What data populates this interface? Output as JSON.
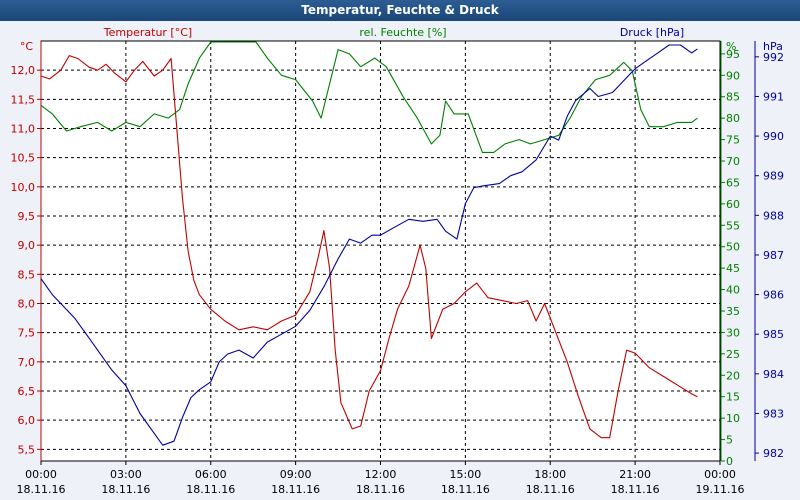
{
  "window": {
    "title": "Temperatur, Feuchte & Druck"
  },
  "colors": {
    "temperature": "#c00000",
    "humidity": "#008000",
    "pressure": "#0000a0",
    "grid": "#000000",
    "titlebar": "#1f4d82"
  },
  "chart_data": {
    "type": "line",
    "title": "Temperatur, Feuchte & Druck",
    "grid": true,
    "legend": "top",
    "x_ticks": [
      {
        "time": "00:00",
        "date": "18.11.16"
      },
      {
        "time": "03:00",
        "date": "18.11.16"
      },
      {
        "time": "06:00",
        "date": "18.11.16"
      },
      {
        "time": "09:00",
        "date": "18.11.16"
      },
      {
        "time": "12:00",
        "date": "18.11.16"
      },
      {
        "time": "15:00",
        "date": "18.11.16"
      },
      {
        "time": "18:00",
        "date": "18.11.16"
      },
      {
        "time": "21:00",
        "date": "18.11.16"
      },
      {
        "time": "00:00",
        "date": "19.11.16"
      }
    ],
    "xlim_hours": [
      0,
      24
    ],
    "axes": {
      "temperature": {
        "label": "Temperatur [°C]",
        "unit": "°C",
        "ylim": [
          5.3,
          12.5
        ],
        "ticks": [
          "5,5",
          "6,0",
          "6,5",
          "7,0",
          "7,5",
          "8,0",
          "8,5",
          "9,0",
          "9,5",
          "10,0",
          "10,5",
          "11,0",
          "11,5",
          "12,0"
        ]
      },
      "humidity": {
        "label": "rel. Feuchte [%]",
        "unit": "%",
        "ylim": [
          0,
          98
        ],
        "ticks": [
          "0",
          "5",
          "10",
          "15",
          "20",
          "25",
          "30",
          "35",
          "40",
          "45",
          "50",
          "55",
          "60",
          "65",
          "70",
          "75",
          "80",
          "85",
          "90",
          "95"
        ]
      },
      "pressure": {
        "label": "Druck [hPa]",
        "unit": "hPa",
        "ylim": [
          981.8,
          992.4
        ],
        "ticks": [
          "982",
          "983",
          "984",
          "985",
          "986",
          "987",
          "988",
          "989",
          "990",
          "991",
          "992"
        ]
      }
    },
    "series": [
      {
        "name": "Temperatur [°C]",
        "axis": "temperature",
        "color": "#c00000",
        "points": [
          [
            0,
            11.9
          ],
          [
            0.3,
            11.85
          ],
          [
            0.7,
            12.0
          ],
          [
            1.0,
            12.25
          ],
          [
            1.3,
            12.2
          ],
          [
            1.7,
            12.05
          ],
          [
            2.0,
            12.0
          ],
          [
            2.3,
            12.1
          ],
          [
            2.6,
            11.95
          ],
          [
            3.0,
            11.8
          ],
          [
            3.3,
            12.0
          ],
          [
            3.6,
            12.15
          ],
          [
            4.0,
            11.9
          ],
          [
            4.3,
            12.0
          ],
          [
            4.6,
            12.2
          ],
          [
            4.8,
            11.0
          ],
          [
            5.0,
            9.8
          ],
          [
            5.2,
            8.9
          ],
          [
            5.4,
            8.4
          ],
          [
            5.6,
            8.15
          ],
          [
            6.0,
            7.9
          ],
          [
            6.5,
            7.7
          ],
          [
            7.0,
            7.55
          ],
          [
            7.5,
            7.6
          ],
          [
            8.0,
            7.55
          ],
          [
            8.5,
            7.7
          ],
          [
            9.0,
            7.8
          ],
          [
            9.5,
            8.2
          ],
          [
            9.8,
            8.8
          ],
          [
            10.0,
            9.25
          ],
          [
            10.2,
            8.6
          ],
          [
            10.4,
            7.2
          ],
          [
            10.6,
            6.3
          ],
          [
            11.0,
            5.85
          ],
          [
            11.3,
            5.9
          ],
          [
            11.6,
            6.5
          ],
          [
            12.0,
            6.85
          ],
          [
            12.3,
            7.4
          ],
          [
            12.6,
            7.9
          ],
          [
            13.0,
            8.3
          ],
          [
            13.4,
            9.0
          ],
          [
            13.6,
            8.6
          ],
          [
            13.8,
            7.4
          ],
          [
            14.2,
            7.9
          ],
          [
            14.6,
            8.0
          ],
          [
            15.0,
            8.2
          ],
          [
            15.4,
            8.35
          ],
          [
            15.8,
            8.1
          ],
          [
            16.3,
            8.05
          ],
          [
            16.8,
            8.0
          ],
          [
            17.2,
            8.05
          ],
          [
            17.5,
            7.7
          ],
          [
            17.8,
            8.0
          ],
          [
            18.2,
            7.5
          ],
          [
            18.6,
            7.0
          ],
          [
            19.0,
            6.4
          ],
          [
            19.4,
            5.85
          ],
          [
            19.8,
            5.7
          ],
          [
            20.1,
            5.7
          ],
          [
            20.4,
            6.5
          ],
          [
            20.7,
            7.2
          ],
          [
            21.0,
            7.15
          ],
          [
            21.5,
            6.9
          ],
          [
            22.0,
            6.75
          ],
          [
            22.5,
            6.6
          ],
          [
            23.0,
            6.45
          ],
          [
            23.2,
            6.4
          ]
        ]
      },
      {
        "name": "rel. Feuchte [%]",
        "axis": "humidity",
        "color": "#008000",
        "points": [
          [
            0,
            83
          ],
          [
            0.4,
            81
          ],
          [
            0.9,
            77
          ],
          [
            1.4,
            78
          ],
          [
            2.0,
            79
          ],
          [
            2.5,
            77
          ],
          [
            3.0,
            79
          ],
          [
            3.5,
            78
          ],
          [
            4.0,
            81
          ],
          [
            4.5,
            80
          ],
          [
            4.9,
            82
          ],
          [
            5.2,
            88
          ],
          [
            5.6,
            94
          ],
          [
            6.0,
            98
          ],
          [
            7.0,
            98
          ],
          [
            7.6,
            98
          ],
          [
            8.0,
            94
          ],
          [
            8.5,
            90
          ],
          [
            9.0,
            89
          ],
          [
            9.6,
            84
          ],
          [
            9.9,
            80
          ],
          [
            10.2,
            88
          ],
          [
            10.5,
            96
          ],
          [
            10.9,
            95
          ],
          [
            11.3,
            92
          ],
          [
            11.8,
            94
          ],
          [
            12.2,
            92
          ],
          [
            12.8,
            85
          ],
          [
            13.3,
            80
          ],
          [
            13.8,
            74
          ],
          [
            14.1,
            76
          ],
          [
            14.3,
            84
          ],
          [
            14.6,
            81
          ],
          [
            15.1,
            81
          ],
          [
            15.6,
            72
          ],
          [
            16.0,
            72
          ],
          [
            16.4,
            74
          ],
          [
            16.9,
            75
          ],
          [
            17.3,
            74
          ],
          [
            17.8,
            75
          ],
          [
            18.3,
            76
          ],
          [
            18.7,
            80
          ],
          [
            19.1,
            85
          ],
          [
            19.6,
            89
          ],
          [
            20.1,
            90
          ],
          [
            20.6,
            93
          ],
          [
            20.9,
            91
          ],
          [
            21.2,
            82
          ],
          [
            21.5,
            78
          ],
          [
            22.0,
            78
          ],
          [
            22.5,
            79
          ],
          [
            23.0,
            79
          ],
          [
            23.2,
            80
          ]
        ]
      },
      {
        "name": "Druck [hPa]",
        "axis": "pressure",
        "color": "#0000a0",
        "points": [
          [
            0,
            986.4
          ],
          [
            0.4,
            986.0
          ],
          [
            0.8,
            985.7
          ],
          [
            1.2,
            985.4
          ],
          [
            1.6,
            985.0
          ],
          [
            2.0,
            984.6
          ],
          [
            2.5,
            984.1
          ],
          [
            3.0,
            983.7
          ],
          [
            3.5,
            983.0
          ],
          [
            4.0,
            982.5
          ],
          [
            4.3,
            982.2
          ],
          [
            4.7,
            982.3
          ],
          [
            5.0,
            982.9
          ],
          [
            5.3,
            983.4
          ],
          [
            5.6,
            983.6
          ],
          [
            6.0,
            983.8
          ],
          [
            6.3,
            984.3
          ],
          [
            6.6,
            984.5
          ],
          [
            7.0,
            984.6
          ],
          [
            7.5,
            984.4
          ],
          [
            8.0,
            984.8
          ],
          [
            8.5,
            985.0
          ],
          [
            9.0,
            985.2
          ],
          [
            9.5,
            985.6
          ],
          [
            10.0,
            986.2
          ],
          [
            10.5,
            986.9
          ],
          [
            10.9,
            987.4
          ],
          [
            11.3,
            987.3
          ],
          [
            11.7,
            987.5
          ],
          [
            12.0,
            987.5
          ],
          [
            12.5,
            987.7
          ],
          [
            13.0,
            987.9
          ],
          [
            13.5,
            987.85
          ],
          [
            14.0,
            987.9
          ],
          [
            14.3,
            987.6
          ],
          [
            14.7,
            987.4
          ],
          [
            15.0,
            988.3
          ],
          [
            15.3,
            988.7
          ],
          [
            15.7,
            988.75
          ],
          [
            16.2,
            988.8
          ],
          [
            16.6,
            989.0
          ],
          [
            17.0,
            989.1
          ],
          [
            17.5,
            989.4
          ],
          [
            18.0,
            990.0
          ],
          [
            18.3,
            989.9
          ],
          [
            18.6,
            990.5
          ],
          [
            18.9,
            990.9
          ],
          [
            19.4,
            991.2
          ],
          [
            19.7,
            991.0
          ],
          [
            20.2,
            991.1
          ],
          [
            20.6,
            991.4
          ],
          [
            21.0,
            991.7
          ],
          [
            21.4,
            991.9
          ],
          [
            21.8,
            992.1
          ],
          [
            22.2,
            992.3
          ],
          [
            22.6,
            992.3
          ],
          [
            23.0,
            992.1
          ],
          [
            23.2,
            992.2
          ]
        ]
      }
    ]
  }
}
